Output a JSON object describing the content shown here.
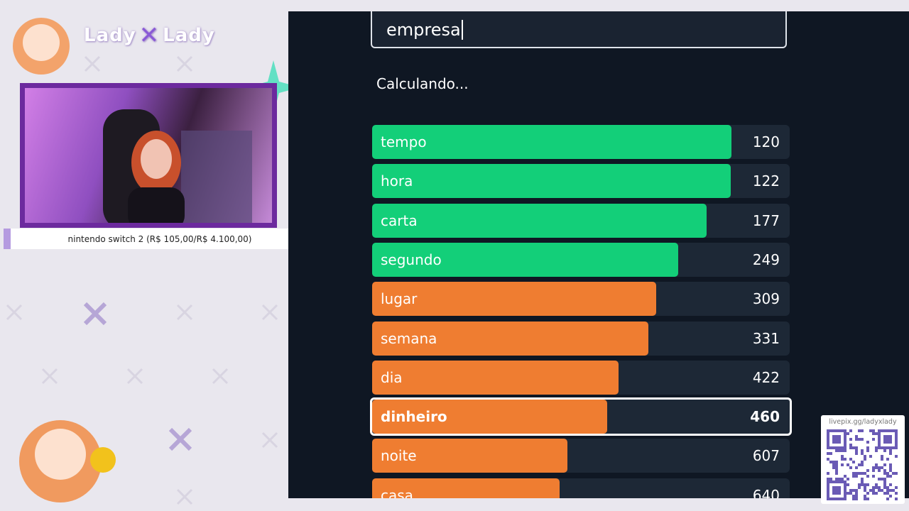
{
  "overlay": {
    "logo_left": "Lady",
    "logo_right": "Lady",
    "goal": "nintendo switch 2 (R$ 105,00/R$ 4.100,00)",
    "donation_link": "livepix.gg/ladyxlady"
  },
  "game": {
    "input": "empresa",
    "status": "Calculando...",
    "guesses": [
      {
        "word": "tempo",
        "rank": 120,
        "color": "#13cf79"
      },
      {
        "word": "hora",
        "rank": 122,
        "color": "#13cf79"
      },
      {
        "word": "carta",
        "rank": 177,
        "color": "#13cf79"
      },
      {
        "word": "segundo",
        "rank": 249,
        "color": "#13cf79"
      },
      {
        "word": "lugar",
        "rank": 309,
        "color": "#ef7d31"
      },
      {
        "word": "semana",
        "rank": 331,
        "color": "#ef7d31"
      },
      {
        "word": "dia",
        "rank": 422,
        "color": "#ef7d31"
      },
      {
        "word": "dinheiro",
        "rank": 460,
        "color": "#ef7d31",
        "highlight": true
      },
      {
        "word": "noite",
        "rank": 607,
        "color": "#ef7d31"
      },
      {
        "word": "casa",
        "rank": 640,
        "color": "#ef7d31"
      }
    ]
  }
}
